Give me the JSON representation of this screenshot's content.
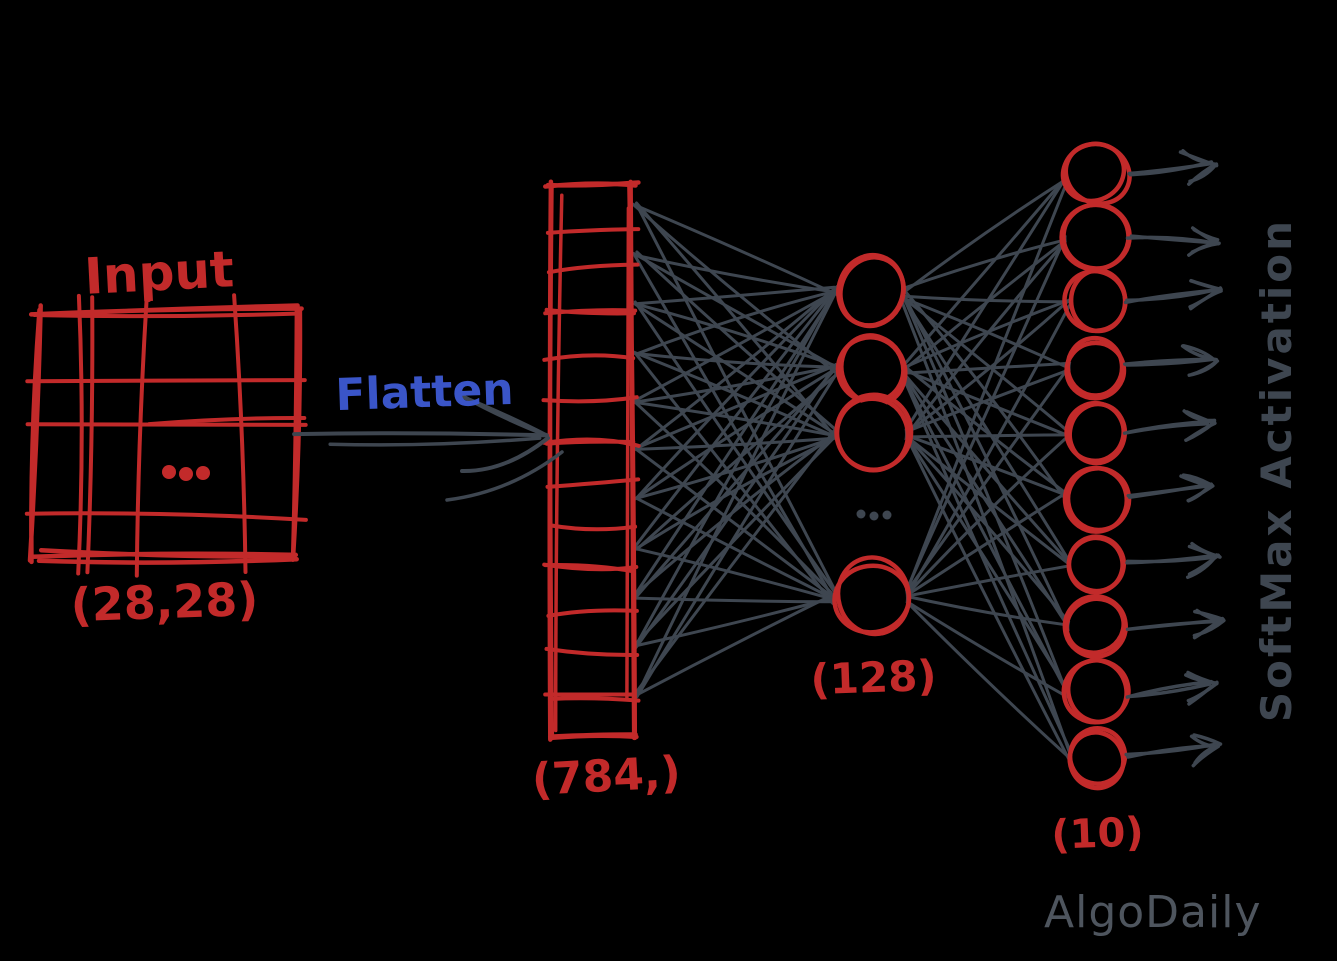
{
  "colors": {
    "red": "#c22a2a",
    "blue": "#3a55c8",
    "ink": "#3e4650",
    "watermark": "#4e555e",
    "background": "#000000"
  },
  "labels": {
    "input_title": "Input",
    "input_shape": "(28,28)",
    "input_ellipsis": "...",
    "flatten": "Flatten",
    "flatten_shape": "(784,)",
    "hidden_shape": "(128)",
    "hidden_ellipsis": "...",
    "output_shape": "(10)",
    "activation": "SoftMax Activation",
    "watermark": "AlgoDaily"
  },
  "network": {
    "input": {
      "type": "image-grid",
      "shape": [
        28,
        28
      ]
    },
    "flatten_vector": {
      "length": 784,
      "visible_cells": 13,
      "connection_taps": 11
    },
    "hidden_layer": {
      "units": 128,
      "visible_nodes": 4
    },
    "output_layer": {
      "units": 10,
      "visible_nodes": 10,
      "activation": "SoftMax"
    }
  }
}
